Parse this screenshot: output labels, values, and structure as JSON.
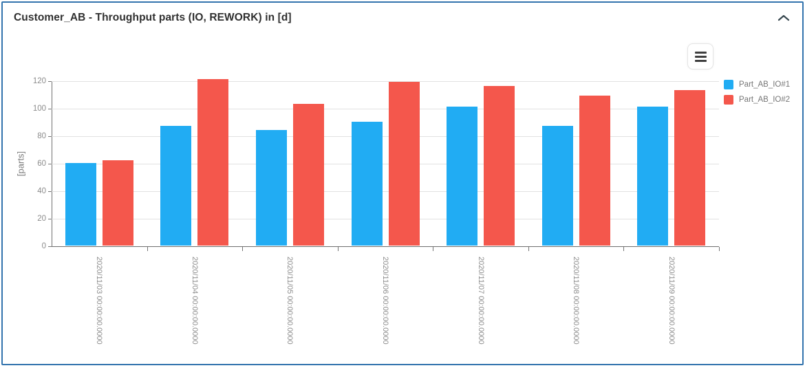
{
  "panel": {
    "title": "Customer_AB - Throughput parts (IO, REWORK) in [d]",
    "collapse_icon": "chevron-up",
    "border_color": "#3273ad"
  },
  "toolbar": {
    "menu_icon": "hamburger-menu"
  },
  "chart_data": {
    "type": "bar",
    "title": "Customer_AB - Throughput parts (IO, REWORK) in [d]",
    "xlabel": "",
    "ylabel": "[parts]",
    "ylim": [
      0,
      120
    ],
    "yticks": [
      0,
      20,
      40,
      60,
      80,
      100,
      120
    ],
    "grid": true,
    "legend_position": "right",
    "categories": [
      "2020/11/03 00:00:00.0000",
      "2020/11/04 00:00:00.0000",
      "2020/11/05 00:00:00.0000",
      "2020/11/06 00:00:00.0000",
      "2020/11/07 00:00:00.0000",
      "2020/11/08 00:00:00.0000",
      "2020/11/09 00:00:00.0000"
    ],
    "series": [
      {
        "name": "Part_AB_IO#1",
        "color": "#21acf3",
        "values": [
          60,
          87,
          84,
          90,
          101,
          87,
          101
        ]
      },
      {
        "name": "Part_AB_IO#2",
        "color": "#f4574c",
        "values": [
          62,
          121,
          103,
          119,
          116,
          109,
          113
        ]
      }
    ],
    "axis_color": "#6e6e6e",
    "grid_color": "#e1e1e1",
    "tick_label_color": "#8c8c8c"
  }
}
